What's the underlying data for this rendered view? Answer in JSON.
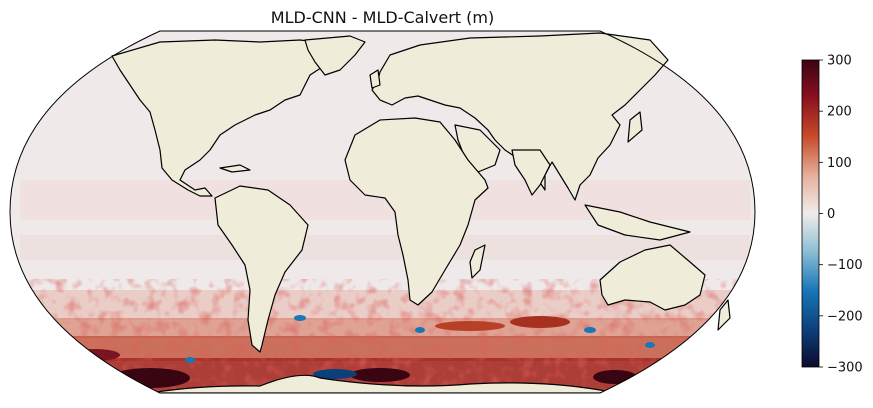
{
  "title": "MLD-CNN - MLD-Calvert (m)",
  "colorbar": {
    "ticks": [
      "300",
      "200",
      "100",
      "0",
      "−100",
      "−200",
      "−300"
    ],
    "min": -300,
    "max": 300,
    "colors": [
      "#0b0a2b",
      "#0d3f7a",
      "#1877b8",
      "#8fc0d4",
      "#f0eceb",
      "#e6b2a0",
      "#c84b2a",
      "#8a1020",
      "#3a0512"
    ]
  },
  "map": {
    "projection": "robinson",
    "ocean_color": "#efe9ea",
    "land_color": "#efedd9",
    "anomaly_band": "southern-ocean"
  }
}
